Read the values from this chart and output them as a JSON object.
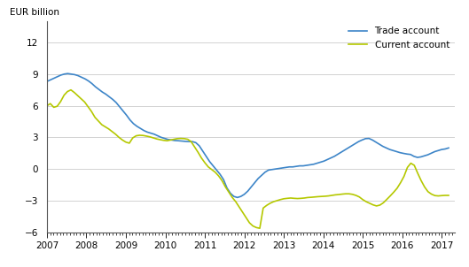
{
  "ylabel": "EUR billion",
  "ylim": [
    -6,
    14
  ],
  "yticks": [
    -6,
    -3,
    0,
    3,
    6,
    9,
    12
  ],
  "xlim_start": 2007.0,
  "xlim_end": 2017.33,
  "xtick_labels": [
    "2007",
    "2008",
    "2009",
    "2010",
    "2011",
    "2012",
    "2013",
    "2014",
    "2015",
    "2016",
    "2017"
  ],
  "trade_color": "#3d85c8",
  "current_color": "#b5c800",
  "trade_label": "Trade account",
  "current_label": "Current account",
  "background_color": "#ffffff",
  "grid_color": "#c0c0c0",
  "trade_account": [
    8.3,
    8.45,
    8.6,
    8.75,
    8.9,
    9.0,
    9.05,
    9.0,
    8.95,
    8.85,
    8.7,
    8.55,
    8.35,
    8.1,
    7.8,
    7.55,
    7.3,
    7.1,
    6.85,
    6.6,
    6.3,
    5.9,
    5.5,
    5.1,
    4.65,
    4.3,
    4.05,
    3.85,
    3.65,
    3.5,
    3.4,
    3.3,
    3.15,
    3.0,
    2.9,
    2.8,
    2.75,
    2.7,
    2.68,
    2.65,
    2.62,
    2.6,
    2.6,
    2.5,
    2.2,
    1.7,
    1.2,
    0.7,
    0.3,
    -0.1,
    -0.5,
    -1.0,
    -1.8,
    -2.3,
    -2.6,
    -2.7,
    -2.6,
    -2.4,
    -2.1,
    -1.7,
    -1.3,
    -0.9,
    -0.6,
    -0.3,
    -0.1,
    -0.05,
    0.0,
    0.05,
    0.1,
    0.15,
    0.2,
    0.2,
    0.25,
    0.3,
    0.3,
    0.35,
    0.4,
    0.45,
    0.55,
    0.65,
    0.75,
    0.9,
    1.05,
    1.2,
    1.4,
    1.6,
    1.8,
    2.0,
    2.2,
    2.4,
    2.6,
    2.75,
    2.88,
    2.9,
    2.75,
    2.55,
    2.35,
    2.15,
    2.0,
    1.85,
    1.75,
    1.65,
    1.55,
    1.48,
    1.42,
    1.38,
    1.2,
    1.1,
    1.15,
    1.25,
    1.35,
    1.5,
    1.65,
    1.75,
    1.85,
    1.9,
    2.0
  ],
  "current_account": [
    6.0,
    6.2,
    5.85,
    5.95,
    6.4,
    7.0,
    7.35,
    7.5,
    7.25,
    6.95,
    6.65,
    6.35,
    5.9,
    5.45,
    4.9,
    4.55,
    4.2,
    4.0,
    3.8,
    3.55,
    3.3,
    3.0,
    2.75,
    2.55,
    2.45,
    2.95,
    3.15,
    3.2,
    3.18,
    3.12,
    3.05,
    2.95,
    2.85,
    2.78,
    2.72,
    2.68,
    2.75,
    2.82,
    2.88,
    2.9,
    2.88,
    2.82,
    2.6,
    2.1,
    1.6,
    1.05,
    0.6,
    0.2,
    -0.05,
    -0.3,
    -0.65,
    -1.1,
    -1.7,
    -2.2,
    -2.7,
    -3.1,
    -3.6,
    -4.1,
    -4.6,
    -5.1,
    -5.4,
    -5.55,
    -5.62,
    -3.7,
    -3.45,
    -3.25,
    -3.1,
    -3.0,
    -2.9,
    -2.82,
    -2.78,
    -2.75,
    -2.78,
    -2.8,
    -2.78,
    -2.75,
    -2.7,
    -2.68,
    -2.65,
    -2.62,
    -2.6,
    -2.58,
    -2.55,
    -2.5,
    -2.45,
    -2.42,
    -2.38,
    -2.35,
    -2.35,
    -2.4,
    -2.5,
    -2.65,
    -2.9,
    -3.1,
    -3.25,
    -3.4,
    -3.5,
    -3.42,
    -3.2,
    -2.88,
    -2.55,
    -2.2,
    -1.82,
    -1.3,
    -0.7,
    0.15,
    0.55,
    0.35,
    -0.4,
    -1.1,
    -1.7,
    -2.15,
    -2.38,
    -2.52,
    -2.55,
    -2.52,
    -2.5,
    -2.5
  ]
}
